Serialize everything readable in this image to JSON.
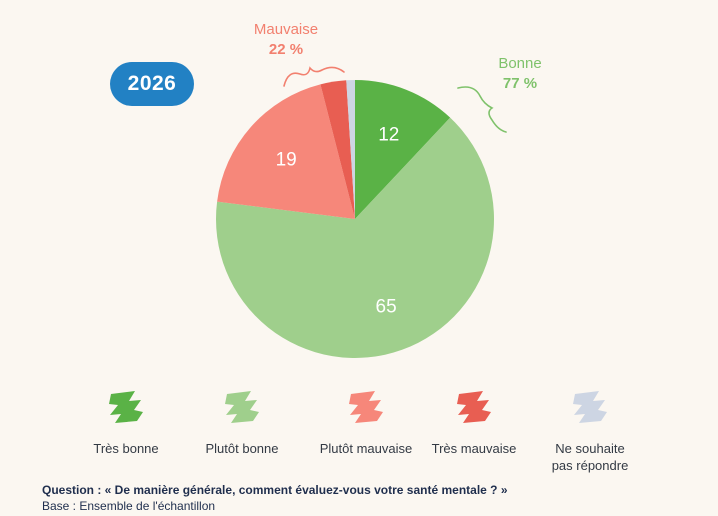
{
  "badge": {
    "year": "2026"
  },
  "groups": {
    "bad": {
      "label": "Mauvaise",
      "pct": "22 %"
    },
    "good": {
      "label": "Bonne",
      "pct": "77 %"
    }
  },
  "chart_data": {
    "type": "pie",
    "slices": [
      {
        "name": "Très bonne",
        "value": 12,
        "color": "#5ab246",
        "label": "12"
      },
      {
        "name": "Plutôt bonne",
        "value": 65,
        "color": "#9fcf8c",
        "label": "65"
      },
      {
        "name": "Plutôt mauvaise",
        "value": 19,
        "color": "#f6877a",
        "label": "19"
      },
      {
        "name": "Très mauvaise",
        "value": 3,
        "color": "#e85e52",
        "label": ""
      },
      {
        "name": "Ne souhaite pas répondre",
        "value": 1,
        "color": "#cdd5e3",
        "label": ""
      }
    ]
  },
  "legend": [
    {
      "label": "Très bonne",
      "color": "#5ab246"
    },
    {
      "label": "Plutôt  bonne",
      "color": "#9fcf8c"
    },
    {
      "label": "Plutôt  mauvaise",
      "color": "#f6877a"
    },
    {
      "label": "Très mauvaise",
      "color": "#e85e52"
    },
    {
      "label": "Ne souhaite\npas répondre",
      "color": "#cdd5e3"
    }
  ],
  "footer": {
    "question": "Question : « De manière générale, comment évaluez-vous votre santé mentale ? »",
    "base": "Base : Ensemble de l'échantillon"
  }
}
